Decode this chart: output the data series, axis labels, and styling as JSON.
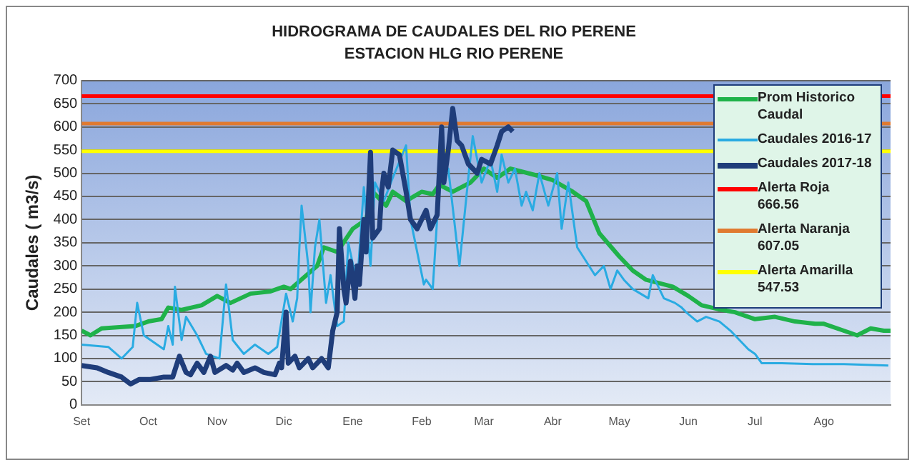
{
  "chart_data": {
    "type": "line",
    "title": "HIDROGRAMA DE CAUDALES DEL RIO PERENE",
    "subtitle": "ESTACION HLG RIO PERENE",
    "ylabel": "Caudales ( m3/s)",
    "xlim": [
      "2017-09-01",
      "2018-08-31"
    ],
    "xticks": [
      {
        "value": "2017-09-01",
        "label": "Set"
      },
      {
        "value": "2017-10-01",
        "label": "Oct"
      },
      {
        "value": "2017-11-01",
        "label": "Nov"
      },
      {
        "value": "2017-12-01",
        "label": "Dic"
      },
      {
        "value": "2018-01-01",
        "label": "Ene"
      },
      {
        "value": "2018-02-01",
        "label": "Feb"
      },
      {
        "value": "2018-03-01",
        "label": "Mar"
      },
      {
        "value": "2018-04-01",
        "label": "Abr"
      },
      {
        "value": "2018-05-01",
        "label": "May"
      },
      {
        "value": "2018-06-01",
        "label": "Jun"
      },
      {
        "value": "2018-07-01",
        "label": "Jul"
      },
      {
        "value": "2018-08-01",
        "label": "Ago"
      }
    ],
    "ylim": [
      0,
      700
    ],
    "yticks": [
      0,
      50,
      100,
      150,
      200,
      250,
      300,
      350,
      400,
      450,
      500,
      550,
      600,
      650,
      700
    ],
    "grid": "y",
    "legend": "top right",
    "marker": "none",
    "line_style": "solid",
    "series": [
      {
        "name": "Prom Historico Caudal",
        "color": "#1fb24a",
        "x": [
          "2017-09-01",
          "2017-09-05",
          "2017-09-10",
          "2017-09-25",
          "2017-10-01",
          "2017-10-07",
          "2017-10-10",
          "2017-10-16",
          "2017-10-25",
          "2017-11-01",
          "2017-11-07",
          "2017-11-16",
          "2017-11-25",
          "2017-12-01",
          "2017-12-04",
          "2017-12-10",
          "2017-12-16",
          "2017-12-19",
          "2017-12-25",
          "2018-01-01",
          "2018-01-07",
          "2018-01-10",
          "2018-01-16",
          "2018-01-19",
          "2018-01-25",
          "2018-02-01",
          "2018-02-06",
          "2018-02-09",
          "2018-02-15",
          "2018-02-23",
          "2018-03-01",
          "2018-03-07",
          "2018-03-13",
          "2018-03-25",
          "2018-04-01",
          "2018-04-10",
          "2018-04-16",
          "2018-04-22",
          "2018-05-01",
          "2018-05-07",
          "2018-05-13",
          "2018-05-25",
          "2018-06-01",
          "2018-06-07",
          "2018-06-16",
          "2018-06-22",
          "2018-07-01",
          "2018-07-10",
          "2018-07-19",
          "2018-07-28",
          "2018-08-01",
          "2018-08-10",
          "2018-08-16",
          "2018-08-22",
          "2018-08-28",
          "2018-08-31"
        ],
        "values": [
          160,
          150,
          165,
          170,
          180,
          185,
          210,
          205,
          215,
          235,
          220,
          240,
          245,
          255,
          250,
          275,
          300,
          340,
          330,
          380,
          400,
          460,
          430,
          460,
          440,
          460,
          455,
          475,
          460,
          480,
          510,
          490,
          510,
          495,
          485,
          460,
          440,
          370,
          320,
          290,
          270,
          255,
          235,
          215,
          205,
          200,
          185,
          190,
          180,
          175,
          175,
          160,
          150,
          165,
          160,
          160
        ]
      },
      {
        "name": "Caudales 2016-17",
        "color": "#29abe2",
        "x": [
          "2017-09-01",
          "2017-09-13",
          "2017-09-19",
          "2017-09-24",
          "2017-09-26",
          "2017-09-29",
          "2017-10-08",
          "2017-10-10",
          "2017-10-12",
          "2017-10-13",
          "2017-10-16",
          "2017-10-18",
          "2017-10-23",
          "2017-10-27",
          "2017-11-02",
          "2017-11-05",
          "2017-11-08",
          "2017-11-13",
          "2017-11-18",
          "2017-11-24",
          "2017-11-28",
          "2017-12-02",
          "2017-12-05",
          "2017-12-07",
          "2017-12-08",
          "2017-12-09",
          "2017-12-12",
          "2017-12-13",
          "2017-12-15",
          "2017-12-17",
          "2017-12-20",
          "2017-12-22",
          "2017-12-25",
          "2017-12-28",
          "2017-12-30",
          "2018-01-03",
          "2018-01-06",
          "2018-01-09",
          "2018-01-11",
          "2018-01-15",
          "2018-01-19",
          "2018-01-25",
          "2018-01-27",
          "2018-02-02",
          "2018-02-03",
          "2018-02-06",
          "2018-02-09",
          "2018-02-13",
          "2018-02-18",
          "2018-02-22",
          "2018-02-24",
          "2018-02-28",
          "2018-03-04",
          "2018-03-07",
          "2018-03-09",
          "2018-03-12",
          "2018-03-15",
          "2018-03-18",
          "2018-03-20",
          "2018-03-23",
          "2018-03-26",
          "2018-03-30",
          "2018-04-03",
          "2018-04-05",
          "2018-04-08",
          "2018-04-12",
          "2018-04-16",
          "2018-04-20",
          "2018-04-24",
          "2018-04-27",
          "2018-04-30",
          "2018-05-03",
          "2018-05-07",
          "2018-05-14",
          "2018-05-16",
          "2018-05-21",
          "2018-05-26",
          "2018-05-29",
          "2018-05-31",
          "2018-06-05",
          "2018-06-09",
          "2018-06-15",
          "2018-06-20",
          "2018-06-28",
          "2018-07-01",
          "2018-07-04",
          "2018-07-13",
          "2018-07-27",
          "2018-08-10",
          "2018-08-30"
        ],
        "values": [
          130,
          125,
          100,
          125,
          220,
          150,
          120,
          170,
          130,
          255,
          140,
          190,
          150,
          110,
          100,
          260,
          140,
          110,
          130,
          110,
          125,
          240,
          180,
          230,
          340,
          430,
          300,
          200,
          340,
          400,
          220,
          280,
          170,
          180,
          350,
          260,
          470,
          300,
          480,
          440,
          490,
          560,
          400,
          260,
          270,
          250,
          480,
          510,
          300,
          490,
          580,
          480,
          530,
          460,
          540,
          480,
          510,
          430,
          460,
          420,
          500,
          430,
          500,
          380,
          480,
          340,
          310,
          280,
          300,
          250,
          290,
          270,
          250,
          230,
          280,
          230,
          220,
          210,
          200,
          180,
          190,
          180,
          160,
          120,
          110,
          90,
          90,
          88,
          88,
          85
        ]
      },
      {
        "name": "Caudales 2017-18",
        "color": "#1f3d7a",
        "x": [
          "2017-09-01",
          "2017-09-08",
          "2017-09-13",
          "2017-09-19",
          "2017-09-23",
          "2017-09-27",
          "2017-10-02",
          "2017-10-08",
          "2017-10-12",
          "2017-10-15",
          "2017-10-18",
          "2017-10-20",
          "2017-10-23",
          "2017-10-26",
          "2017-10-29",
          "2017-10-31",
          "2017-11-05",
          "2017-11-08",
          "2017-11-10",
          "2017-11-13",
          "2017-11-18",
          "2017-11-22",
          "2017-11-27",
          "2017-11-29",
          "2017-11-30",
          "2017-12-02",
          "2017-12-03",
          "2017-12-06",
          "2017-12-08",
          "2017-12-12",
          "2017-12-14",
          "2017-12-18",
          "2017-12-21",
          "2017-12-23",
          "2017-12-25",
          "2017-12-26",
          "2017-12-28",
          "2017-12-29",
          "2017-12-31",
          "2018-01-02",
          "2018-01-03",
          "2018-01-04",
          "2018-01-06",
          "2018-01-07",
          "2018-01-09",
          "2018-01-10",
          "2018-01-13",
          "2018-01-14",
          "2018-01-15",
          "2018-01-17",
          "2018-01-19",
          "2018-01-22",
          "2018-01-25",
          "2018-01-27",
          "2018-01-30",
          "2018-02-03",
          "2018-02-05",
          "2018-02-08",
          "2018-02-10",
          "2018-02-11",
          "2018-02-13",
          "2018-02-15",
          "2018-02-17",
          "2018-02-19",
          "2018-02-22",
          "2018-02-26",
          "2018-02-28",
          "2018-03-04",
          "2018-03-07",
          "2018-03-09",
          "2018-03-12",
          "2018-03-14"
        ],
        "values": [
          85,
          80,
          70,
          60,
          45,
          55,
          55,
          60,
          60,
          105,
          70,
          65,
          90,
          70,
          105,
          70,
          85,
          75,
          90,
          70,
          80,
          70,
          65,
          90,
          80,
          200,
          90,
          105,
          80,
          100,
          80,
          100,
          80,
          160,
          200,
          380,
          250,
          220,
          310,
          230,
          300,
          260,
          400,
          330,
          545,
          360,
          380,
          460,
          500,
          470,
          550,
          540,
          460,
          400,
          380,
          420,
          380,
          410,
          600,
          480,
          550,
          640,
          570,
          560,
          520,
          500,
          530,
          520,
          560,
          590,
          600,
          590
        ]
      }
    ],
    "ref_lines": [
      {
        "axis": "y",
        "value": 666.56,
        "label": "Alerta Roja  666.56",
        "color": "#ff0000"
      },
      {
        "axis": "y",
        "value": 607.05,
        "label": "Alerta Naranja 607.05",
        "color": "#e07a30"
      },
      {
        "axis": "y",
        "value": 547.53,
        "label": "Alerta Amarilla 547.53",
        "color": "#ffff00"
      }
    ]
  }
}
